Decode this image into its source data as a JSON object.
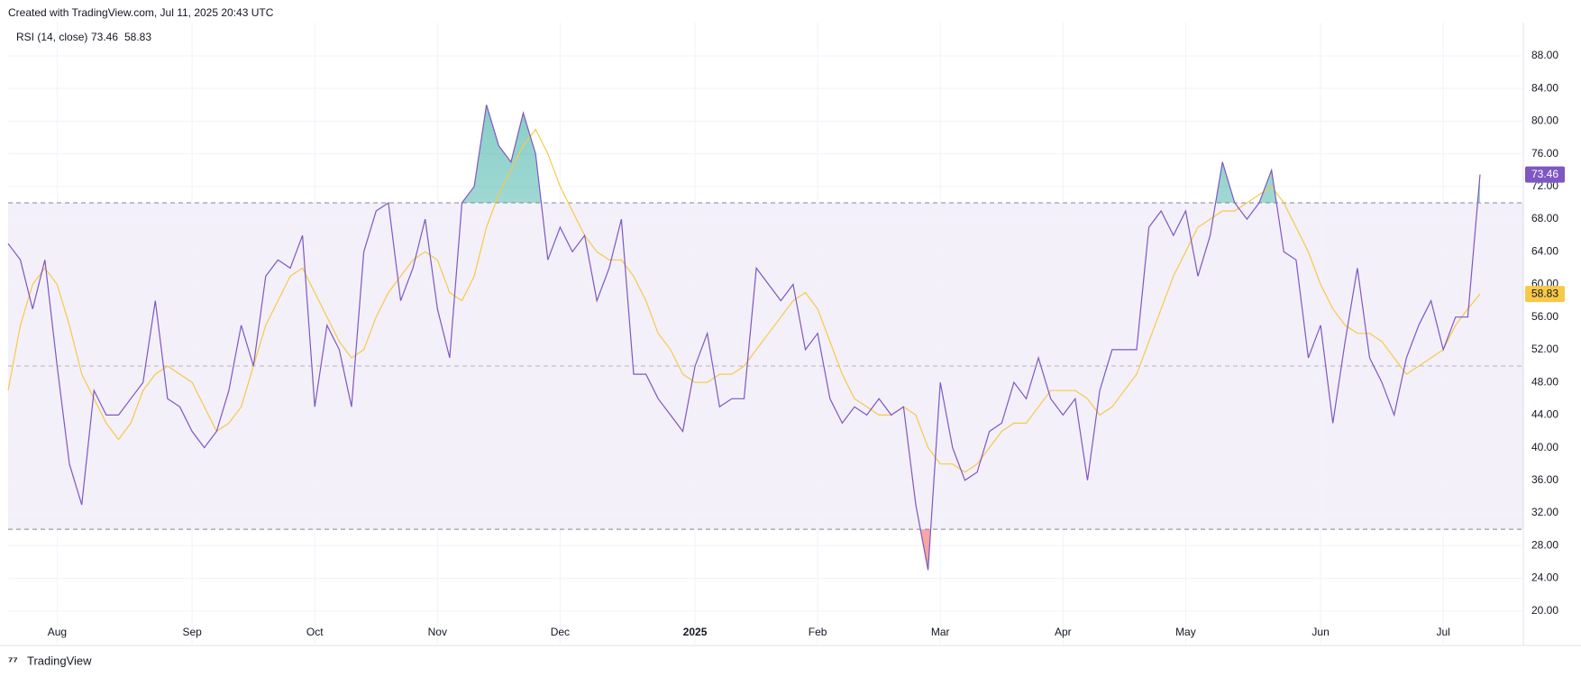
{
  "header": "Created with TradingView.com, Jul 11, 2025 20:43 UTC",
  "footer": "TradingView",
  "chart_data": {
    "type": "line",
    "legend_title": "RSI (14, close)",
    "categories": [
      null,
      null,
      null,
      null,
      "Aug",
      null,
      null,
      null,
      null,
      null,
      null,
      null,
      null,
      null,
      null,
      "Sep",
      null,
      null,
      null,
      null,
      null,
      null,
      null,
      null,
      null,
      "Oct",
      null,
      null,
      null,
      null,
      null,
      null,
      null,
      null,
      null,
      "Nov",
      null,
      null,
      null,
      null,
      null,
      null,
      null,
      null,
      null,
      "Dec",
      null,
      null,
      null,
      null,
      null,
      null,
      null,
      null,
      null,
      null,
      "2025",
      null,
      null,
      null,
      null,
      null,
      null,
      null,
      null,
      null,
      "Feb",
      null,
      null,
      null,
      null,
      null,
      null,
      null,
      null,
      null,
      "Mar",
      null,
      null,
      null,
      null,
      null,
      null,
      null,
      null,
      null,
      "Apr",
      null,
      null,
      null,
      null,
      null,
      null,
      null,
      null,
      null,
      "May",
      null,
      null,
      null,
      null,
      null,
      null,
      null,
      null,
      null,
      null,
      "Jun",
      null,
      null,
      null,
      null,
      null,
      null,
      null,
      null,
      null,
      "Jul",
      null,
      null,
      null
    ],
    "series": [
      {
        "color": "#7e57c2",
        "values": [
          65,
          63,
          57,
          63,
          50,
          38,
          33,
          47,
          44,
          44,
          46,
          48,
          58,
          46,
          45,
          42,
          40,
          42,
          47,
          55,
          50,
          61,
          63,
          62,
          66,
          45,
          55,
          52,
          45,
          64,
          69,
          70,
          58,
          62,
          68,
          57,
          51,
          70,
          72,
          82,
          77,
          75,
          81,
          76,
          63,
          67,
          64,
          66,
          58,
          62,
          68,
          49,
          49,
          46,
          44,
          42,
          50,
          54,
          45,
          46,
          46,
          62,
          60,
          58,
          60,
          52,
          54,
          46,
          43,
          45,
          44,
          46,
          44,
          45,
          33,
          25,
          48,
          40,
          36,
          37,
          42,
          43,
          48,
          46,
          51,
          46,
          44,
          46,
          36,
          47,
          52,
          52,
          52,
          67,
          69,
          66,
          69,
          61,
          66,
          75,
          70,
          68,
          70,
          74,
          64,
          63,
          51,
          55,
          43,
          53,
          62,
          51,
          48,
          44,
          51,
          55,
          58,
          52,
          56,
          56,
          73.46
        ]
      },
      {
        "color": "#f7c948",
        "values": [
          47,
          55,
          60,
          62,
          60,
          55,
          49,
          46,
          43,
          41,
          43,
          47,
          49,
          50,
          49,
          48,
          45,
          42,
          43,
          45,
          50,
          55,
          58,
          61,
          62,
          59,
          56,
          53,
          51,
          52,
          56,
          59,
          61,
          63,
          64,
          63,
          59,
          58,
          61,
          67,
          71,
          74,
          77,
          79,
          76,
          72,
          69,
          66,
          64,
          63,
          63,
          61,
          58,
          54,
          52,
          49,
          48,
          48,
          49,
          49,
          50,
          52,
          54,
          56,
          58,
          59,
          57,
          53,
          49,
          46,
          45,
          44,
          44,
          45,
          44,
          40,
          38,
          38,
          37,
          38,
          40,
          42,
          43,
          43,
          45,
          47,
          47,
          47,
          46,
          44,
          45,
          47,
          49,
          53,
          57,
          61,
          64,
          67,
          68,
          69,
          69,
          70,
          71,
          72,
          70,
          67,
          64,
          60,
          57,
          55,
          54,
          54,
          53,
          51,
          49,
          50,
          51,
          52,
          55,
          57,
          58.83
        ]
      }
    ],
    "levels": [
      70,
      50,
      30
    ],
    "ylim": [
      18.2,
      89.1
    ],
    "yticks": [
      {
        "value": 20,
        "label": "20.00"
      },
      {
        "value": 24,
        "label": "24.00"
      },
      {
        "value": 28,
        "label": "28.00"
      },
      {
        "value": 32,
        "label": "32.00"
      },
      {
        "value": 36,
        "label": "36.00"
      },
      {
        "value": 40,
        "label": "40.00"
      },
      {
        "value": 44,
        "label": "44.00"
      },
      {
        "value": 48,
        "label": "48.00"
      },
      {
        "value": 52,
        "label": "52.00"
      },
      {
        "value": 56,
        "label": "56.00"
      },
      {
        "value": 60,
        "label": "60.00"
      },
      {
        "value": 64,
        "label": "64.00"
      },
      {
        "value": 68,
        "label": "68.00"
      },
      {
        "value": 72,
        "label": "72.00"
      },
      {
        "value": 76,
        "label": "76.00"
      },
      {
        "value": 80,
        "label": "80.00"
      },
      {
        "value": 84,
        "label": "84.00"
      },
      {
        "value": 88,
        "label": "88.00"
      }
    ],
    "grid": true
  }
}
